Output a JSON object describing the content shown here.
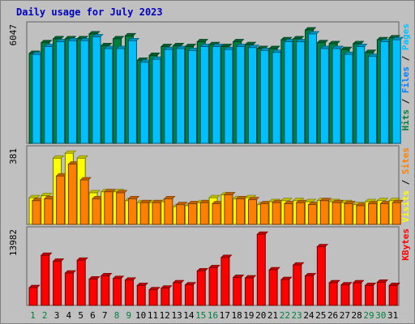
{
  "colors": {
    "page_bg": "#c0c0c0",
    "plot_bg": "#c0c0c0",
    "border": "#606060",
    "title": "#0000c0",
    "hits": "#008040",
    "files": "#0080ff",
    "pages": "#00c0ff",
    "visits": "#ffff00",
    "sites": "#ff8000",
    "kbytes": "#ff0000",
    "weekend_day": "#008040",
    "weekday": "#000000"
  },
  "chart_data": {
    "type": "bar",
    "title": "Daily usage for July 2023",
    "categories": [
      "1",
      "2",
      "3",
      "4",
      "5",
      "6",
      "7",
      "8",
      "9",
      "10",
      "11",
      "12",
      "13",
      "14",
      "15",
      "16",
      "17",
      "18",
      "19",
      "20",
      "21",
      "22",
      "23",
      "24",
      "25",
      "26",
      "27",
      "28",
      "29",
      "30",
      "31"
    ],
    "weekend_days": [
      "1",
      "2",
      "8",
      "9",
      "15",
      "16",
      "22",
      "23",
      "29",
      "30"
    ],
    "panels": [
      {
        "name": "hits-files-pages",
        "max_label": "6047",
        "ymax": 6047,
        "legend": [
          {
            "text": "Hits",
            "color": "#008040"
          },
          {
            "text": "Files",
            "color": "#0080ff"
          },
          {
            "text": "Pages",
            "color": "#00c0ff"
          }
        ],
        "series": [
          {
            "name": "Hits",
            "color": "#008040",
            "values": [
              4600,
              5150,
              5350,
              5350,
              5350,
              5600,
              5000,
              5350,
              5500,
              4250,
              4500,
              4950,
              5000,
              4950,
              5200,
              5050,
              4950,
              5200,
              5050,
              4850,
              4850,
              5300,
              5350,
              5800,
              5150,
              5100,
              4800,
              5100,
              4650,
              5300,
              5400
            ]
          },
          {
            "name": "Files",
            "color": "#00c0ff",
            "values": [
              4550,
              4950,
              5200,
              5250,
              5250,
              5450,
              4850,
              4850,
              5250,
              4150,
              4300,
              4800,
              4850,
              4750,
              4950,
              4950,
              4800,
              4950,
              4900,
              4750,
              4650,
              5200,
              5200,
              5600,
              4850,
              4850,
              4550,
              4950,
              4450,
              5200,
              5300
            ]
          }
        ]
      },
      {
        "name": "visits-sites",
        "max_label": "381",
        "ymax": 381,
        "legend": [
          {
            "text": "Visits",
            "color": "#ffff00"
          },
          {
            "text": "Sites",
            "color": "#ff8000"
          }
        ],
        "series": [
          {
            "name": "Visits",
            "color": "#ffff00",
            "values": [
              135,
              145,
              335,
              360,
              335,
              160,
              165,
              165,
              120,
              110,
              110,
              115,
              90,
              95,
              110,
              135,
              150,
              130,
              135,
              100,
              115,
              120,
              120,
              115,
              120,
              115,
              110,
              100,
              115,
              120,
              120
            ]
          },
          {
            "name": "Sites",
            "color": "#ff8000",
            "values": [
              120,
              130,
              245,
              305,
              225,
              130,
              165,
              160,
              130,
              110,
              110,
              130,
              100,
              105,
              110,
              105,
              150,
              130,
              125,
              105,
              110,
              105,
              110,
              100,
              120,
              110,
              105,
              95,
              105,
              105,
              110
            ]
          }
        ]
      },
      {
        "name": "kbytes",
        "max_label": "13982",
        "ymax": 13982,
        "legend": [
          {
            "text": "KBytes",
            "color": "#ff0000"
          }
        ],
        "series": [
          {
            "name": "KBytes",
            "color": "#ff0000",
            "values": [
              3300,
              9300,
              8200,
              6000,
              8400,
              4900,
              5500,
              5000,
              4700,
              3700,
              2900,
              3200,
              4200,
              3800,
              6400,
              7000,
              8900,
              5200,
              5100,
              13200,
              6600,
              4800,
              7500,
              5500,
              10900,
              4200,
              3800,
              4200,
              3700,
              4300,
              3700
            ]
          }
        ]
      }
    ]
  }
}
